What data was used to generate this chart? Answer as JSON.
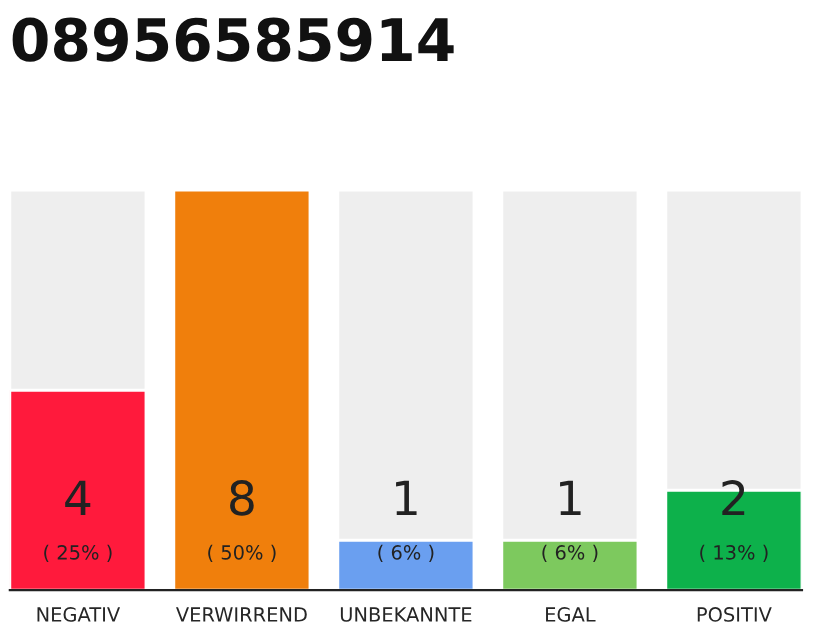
{
  "chart_data": {
    "type": "bar",
    "title": "08956585914",
    "stacked": true,
    "ylim": [
      0,
      8
    ],
    "tick_labels": "x",
    "categories": [
      "NEGATIV",
      "VERWIRREND",
      "UNBEKANNTE",
      "EGAL",
      "POSITIV"
    ],
    "series": [
      {
        "colors": [
          "#ff1a3c",
          "#f07f0c",
          "#6a9ff0",
          "#7dc95e",
          "#0db14b"
        ],
        "values": [
          4,
          8,
          1,
          1,
          2
        ],
        "value_labels": [
          "4",
          "8",
          "1",
          "1",
          "2"
        ]
      },
      {
        "color": "#eeeeee",
        "values": [
          4,
          0,
          7,
          7,
          6
        ],
        "value_labels": [
          null,
          null,
          null,
          null,
          null
        ]
      }
    ],
    "annotations": [
      "( 25% )",
      "( 50% )",
      "( 6% )",
      "( 6% )",
      "( 13% )"
    ]
  }
}
